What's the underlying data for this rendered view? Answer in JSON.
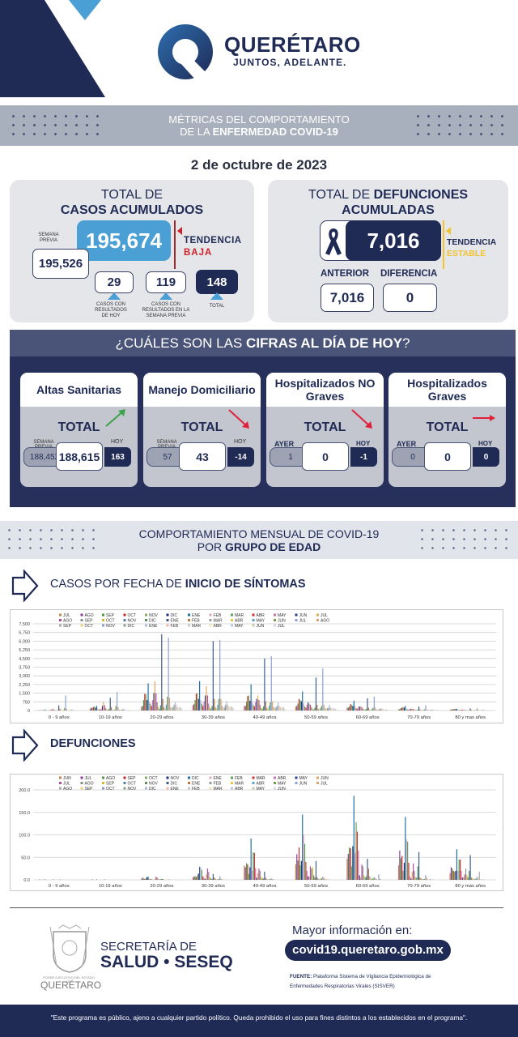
{
  "header": {
    "brand": "QUERÉTARO",
    "slogan": "JUNTOS, ADELANTE."
  },
  "banner1": {
    "line1": "MÉTRICAS DEL COMPORTAMIENTO",
    "line2_pre": "DE LA ",
    "line2_bold": "ENFERMEDAD COVID-19"
  },
  "date": "2 de octubre de 2023",
  "cases": {
    "title1": "TOTAL DE",
    "title2": "CASOS ACUMULADOS",
    "total": "195,674",
    "prev_label": "SEMANA PREVIA",
    "prev_value": "195,526",
    "trend_label": "TENDENCIA",
    "trend_value": "BAJA",
    "trend_color": "#d0202a",
    "today": "29",
    "today_caption": "CASOS CON RESULTADOS DE HOY",
    "week": "119",
    "week_caption": "CASOS CON RESULTADOS EN LA SEMANA PREVIA",
    "sum": "148",
    "sum_caption": "TOTAL"
  },
  "deaths": {
    "title_pre": "TOTAL DE ",
    "title_bold": "DEFUNCIONES",
    "title2": "ACUMULADAS",
    "total": "7,016",
    "trend_label": "TENDENCIA",
    "trend_value": "ESTABLE",
    "trend_color": "#f2c230",
    "prev_label": "ANTERIOR",
    "prev_value": "7,016",
    "diff_label": "DIFERENCIA",
    "diff_value": "0"
  },
  "today": {
    "q_pre": "¿CUÁLES SON LAS ",
    "q_bold": "CIFRAS AL DÍA DE HOY",
    "q_post": "?",
    "cards": [
      {
        "title": "Altas Sanitarias",
        "total_label": "TOTAL",
        "left_label": "SEMANA PREVIA",
        "left": "188,452",
        "center": "188,615",
        "right_label": "HOY",
        "right": "163",
        "trend": "up",
        "trend_color": "#3aa34a"
      },
      {
        "title": "Manejo Domiciliario",
        "total_label": "TOTAL",
        "left_label": "SEMANA PREVIA",
        "left": "57",
        "center": "43",
        "right_label": "HOY",
        "right": "-14",
        "trend": "down",
        "trend_color": "#e0203a"
      },
      {
        "title": "Hospitalizados NO Graves",
        "total_label": "TOTAL",
        "left_label": "AYER",
        "left": "1",
        "center": "0",
        "right_label": "HOY",
        "right": "-1",
        "trend": "down",
        "trend_color": "#e0203a"
      },
      {
        "title": "Hospitalizados Graves",
        "total_label": "TOTAL",
        "left_label": "AYER",
        "left": "0",
        "center": "0",
        "right_label": "HOY",
        "right": "0",
        "trend": "flat",
        "trend_color": "#e0203a"
      }
    ]
  },
  "banner2": {
    "line1": "COMPORTAMIENTO MENSUAL DE COVID-19",
    "line2_pre": "POR ",
    "line2_bold": "GRUPO DE EDAD"
  },
  "section_cases": {
    "pre": "CASOS POR FECHA DE ",
    "bold": "INICIO  DE SÍNTOMAS"
  },
  "section_deaths": {
    "bold": "DEFUNCIONES"
  },
  "chart_data": [
    {
      "type": "bar",
      "title": "",
      "xlabel": "",
      "ylabel": "",
      "ylim": [
        0,
        7500
      ],
      "yticks": [
        "0",
        "750",
        "1,500",
        "2,250",
        "3,000",
        "3,750",
        "4,500",
        "5,250",
        "6,000",
        "6,750",
        "7,500"
      ],
      "grid": true,
      "legend": "top",
      "categories": [
        "0 - 9 años",
        "10-19 años",
        "20-29 años",
        "30-39 años",
        "40-49 años",
        "50-59 años",
        "60-69 años",
        "70-79 años",
        "80 y mas años"
      ],
      "series_names": [
        "JUL",
        "AGO",
        "SEP",
        "OCT",
        "NOV",
        "DIC",
        "ENE",
        "FEB",
        "MAR",
        "ABR",
        "MAY",
        "JUN",
        "JUL",
        "AGO",
        "SEP",
        "OCT",
        "NOV",
        "DIC",
        "ENE",
        "FEB",
        "MAR",
        "ABR",
        "MAY",
        "JUN",
        "JUL",
        "AGO",
        "SEP",
        "OCT",
        "NOV",
        "DIC",
        "ENE",
        "FEB",
        "MAR",
        "ABR",
        "MAY",
        "JUN",
        "JUL"
      ],
      "values_by_category": [
        [
          20,
          20,
          15,
          20,
          30,
          40,
          60,
          30,
          20,
          15,
          20,
          60,
          150,
          120,
          60,
          30,
          20,
          40,
          450,
          150,
          30,
          20,
          40,
          200,
          1300,
          150,
          40,
          30,
          40,
          60,
          80,
          30,
          20,
          20,
          20,
          15,
          10
        ],
        [
          150,
          250,
          200,
          300,
          350,
          250,
          400,
          150,
          100,
          80,
          150,
          400,
          750,
          450,
          200,
          100,
          60,
          150,
          1100,
          300,
          60,
          50,
          100,
          400,
          1600,
          300,
          80,
          60,
          70,
          100,
          150,
          60,
          40,
          40,
          50,
          40,
          20
        ],
        [
          300,
          400,
          900,
          1450,
          1400,
          900,
          2350,
          800,
          600,
          400,
          900,
          1500,
          2550,
          1500,
          700,
          300,
          150,
          450,
          6600,
          1000,
          300,
          200,
          500,
          1200,
          6300,
          1100,
          300,
          200,
          300,
          500,
          700,
          500,
          300,
          250,
          300,
          250,
          150
        ],
        [
          450,
          550,
          900,
          1450,
          1500,
          1000,
          2550,
          900,
          600,
          400,
          800,
          1300,
          2100,
          1300,
          600,
          300,
          150,
          400,
          6000,
          1000,
          300,
          200,
          500,
          1000,
          6100,
          1000,
          400,
          200,
          300,
          500,
          800,
          500,
          350,
          300,
          350,
          300,
          200
        ],
        [
          400,
          400,
          750,
          1250,
          1300,
          850,
          2250,
          800,
          500,
          350,
          700,
          1000,
          1300,
          900,
          500,
          250,
          150,
          350,
          4500,
          800,
          250,
          150,
          400,
          700,
          4700,
          800,
          300,
          200,
          250,
          400,
          700,
          400,
          300,
          250,
          300,
          250,
          150
        ],
        [
          350,
          400,
          600,
          1000,
          900,
          800,
          1650,
          600,
          350,
          250,
          500,
          700,
          600,
          500,
          300,
          150,
          100,
          250,
          2850,
          500,
          150,
          100,
          250,
          400,
          3650,
          500,
          200,
          150,
          200,
          250,
          500,
          250,
          200,
          150,
          200,
          150,
          100
        ],
        [
          250,
          250,
          350,
          550,
          500,
          400,
          850,
          350,
          200,
          150,
          300,
          350,
          350,
          300,
          150,
          100,
          80,
          150,
          1050,
          250,
          80,
          60,
          150,
          250,
          1200,
          250,
          100,
          80,
          100,
          150,
          200,
          150,
          100,
          80,
          100,
          80,
          50
        ],
        [
          100,
          120,
          200,
          250,
          300,
          250,
          400,
          150,
          100,
          80,
          120,
          150,
          150,
          120,
          80,
          50,
          40,
          80,
          350,
          100,
          40,
          30,
          60,
          100,
          450,
          100,
          50,
          40,
          50,
          60,
          80,
          60,
          40,
          30,
          40,
          30,
          20
        ],
        [
          60,
          80,
          100,
          120,
          150,
          120,
          150,
          80,
          50,
          40,
          60,
          60,
          60,
          50,
          40,
          30,
          20,
          40,
          180,
          50,
          20,
          15,
          30,
          40,
          200,
          50,
          30,
          20,
          30,
          40,
          60,
          30,
          20,
          20,
          20,
          15,
          10
        ]
      ]
    },
    {
      "type": "bar",
      "title": "",
      "xlabel": "",
      "ylabel": "",
      "ylim": [
        0,
        200
      ],
      "yticks": [
        "0.0",
        "50.0",
        "100.0",
        "150.0",
        "200.0"
      ],
      "grid": true,
      "legend": "top",
      "categories": [
        "0 - 9 años",
        "10-19 años",
        "20-29 años",
        "30-39 años",
        "40-49 años",
        "50-59 años",
        "60-69 años",
        "70-79 años",
        "80 y más años"
      ],
      "series_names": [
        "JUN",
        "JUL",
        "AGO",
        "SEP",
        "OCT",
        "NOV",
        "DIC",
        "ENE",
        "FEB",
        "MAR",
        "ABR",
        "MAY",
        "JUN",
        "JUL",
        "AGO",
        "SEP",
        "OCT",
        "NOV",
        "DIC",
        "ENE",
        "FEB",
        "MAR",
        "ABR",
        "MAY",
        "JUN",
        "JUL",
        "AGO",
        "SEP",
        "OCT",
        "NOV",
        "DIC",
        "ENE",
        "FEB",
        "MAR",
        "ABR",
        "MAY",
        "JUN"
      ],
      "values_by_category": [
        [
          0,
          1,
          0,
          0,
          1,
          0,
          1,
          0,
          0,
          0,
          0,
          0,
          0,
          1,
          0,
          0,
          0,
          0,
          0,
          1,
          0,
          0,
          0,
          0,
          0,
          0,
          0,
          0,
          0,
          0,
          0,
          0,
          0,
          0,
          0,
          0,
          0
        ],
        [
          0,
          0,
          1,
          0,
          0,
          0,
          1,
          0,
          0,
          0,
          0,
          0,
          0,
          1,
          0,
          0,
          0,
          0,
          0,
          0,
          0,
          0,
          0,
          0,
          0,
          0,
          0,
          0,
          0,
          0,
          0,
          0,
          0,
          0,
          0,
          0,
          0
        ],
        [
          2,
          5,
          3,
          2,
          4,
          6,
          7,
          3,
          2,
          1,
          1,
          0,
          2,
          7,
          5,
          3,
          1,
          1,
          2,
          2,
          1,
          0,
          0,
          0,
          1,
          1,
          0,
          0,
          0,
          0,
          0,
          0,
          0,
          0,
          0,
          0,
          0
        ],
        [
          5,
          7,
          8,
          6,
          10,
          14,
          29,
          27,
          22,
          8,
          4,
          2,
          12,
          25,
          18,
          6,
          3,
          2,
          13,
          5,
          3,
          1,
          1,
          2,
          8,
          3,
          1,
          1,
          0,
          0,
          1,
          0,
          0,
          0,
          0,
          0,
          0
        ],
        [
          32,
          28,
          37,
          34,
          13,
          28,
          92,
          20,
          61,
          60,
          26,
          5,
          15,
          25,
          20,
          7,
          3,
          3,
          18,
          5,
          2,
          1,
          1,
          2,
          3,
          2,
          1,
          0,
          0,
          0,
          0,
          0,
          0,
          0,
          0,
          0,
          0
        ],
        [
          35,
          57,
          43,
          72,
          32,
          42,
          145,
          100,
          80,
          40,
          20,
          8,
          7,
          30,
          25,
          28,
          10,
          5,
          42,
          6,
          3,
          2,
          2,
          4,
          7,
          5,
          2,
          1,
          1,
          0,
          1,
          0,
          0,
          0,
          0,
          0,
          0
        ],
        [
          47,
          58,
          72,
          70,
          30,
          75,
          187,
          60,
          128,
          107,
          65,
          10,
          5,
          34,
          30,
          10,
          5,
          8,
          47,
          25,
          8,
          4,
          2,
          4,
          6,
          4,
          2,
          1,
          12,
          2,
          1,
          0,
          0,
          0,
          0,
          0,
          0
        ],
        [
          32,
          65,
          48,
          53,
          20,
          38,
          140,
          90,
          85,
          38,
          8,
          3,
          18,
          36,
          20,
          6,
          5,
          30,
          62,
          5,
          3,
          2,
          2,
          2,
          11,
          5,
          1,
          1,
          2,
          0,
          1,
          0,
          0,
          0,
          0,
          0,
          0
        ],
        [
          15,
          28,
          25,
          20,
          18,
          20,
          68,
          20,
          45,
          45,
          20,
          5,
          6,
          12,
          25,
          10,
          5,
          20,
          55,
          5,
          3,
          2,
          2,
          3,
          7,
          3,
          18,
          1,
          1,
          0,
          1,
          0,
          0,
          0,
          0,
          0,
          0
        ]
      ]
    }
  ],
  "palette": [
    "#c0874f",
    "#8e3a9c",
    "#4f9a3c",
    "#c0282d",
    "#7fb05a",
    "#1f2f7a",
    "#1e6fa0",
    "#e5a3c4",
    "#5aa05a",
    "#d32f2f",
    "#d070b0",
    "#2e3f8f",
    "#e0a860",
    "#b04ca0",
    "#8a8a8a",
    "#d8b82a",
    "#5a7fa0",
    "#5a8f5a",
    "#3a5a8a",
    "#c07840",
    "#9a9a9a",
    "#e8c840",
    "#5aa0c8",
    "#7a9a4a",
    "#8aa0d0",
    "#e0a070",
    "#a8a8a8",
    "#f0d070",
    "#8a9ac8",
    "#8aa08a",
    "#a8b8d8",
    "#f0b8a0",
    "#c8c8c8",
    "#f8e0b0",
    "#b8c8e0",
    "#c8c8a8",
    "#d8d8e8"
  ],
  "footer": {
    "seal_text": "PODER EJECUTIVO DEL ESTADO DE",
    "seal_name": "QUERÉTARO",
    "org1": "SECRETARÍA DE",
    "org2": "SALUD • SESEQ",
    "more": "Mayor información en:",
    "url": "covid19.queretaro.gob.mx",
    "source_label": "FUENTE:",
    "source": "Plataforma Sistema  de Vigilancia Epidemiológica de Enfermedades Respiratorias Virales (SISVER)",
    "disclaimer": "\"Este programa es público, ajeno a cualquier partido político. Queda prohibido el uso para fines distintos a los establecidos en el programa\"."
  }
}
